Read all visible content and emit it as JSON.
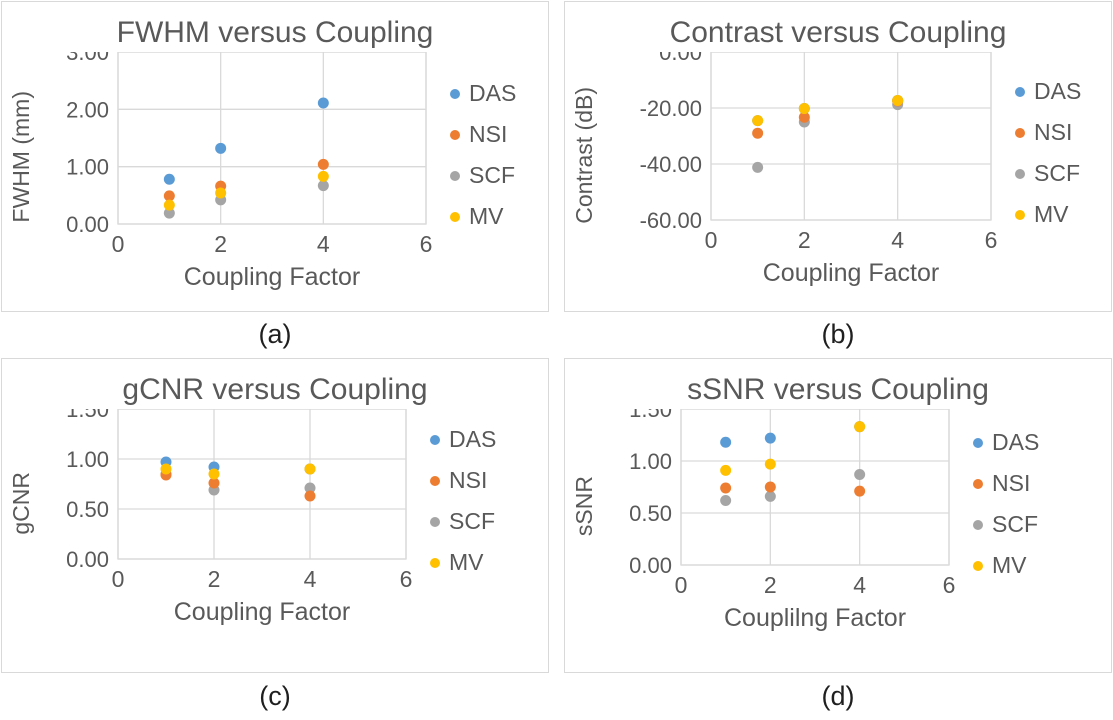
{
  "page": {
    "background": "#ffffff",
    "text_color": "#595959"
  },
  "palette": {
    "DAS": "#5B9BD5",
    "NSI": "#ED7D31",
    "SCF": "#A5A5A5",
    "MV": "#FFC000",
    "gridline": "#D9D9D9"
  },
  "chart_data": [
    {
      "id": "a",
      "type": "scatter",
      "title": "FWHM versus Coupling",
      "xlabel": "Coupling Factor",
      "ylabel": "FWHM (mm)",
      "caption": "(a)",
      "xlim": [
        0,
        6
      ],
      "ylim": [
        0,
        3
      ],
      "xticks": [
        {
          "v": 0,
          "label": "0"
        },
        {
          "v": 2,
          "label": "2"
        },
        {
          "v": 4,
          "label": "4"
        },
        {
          "v": 6,
          "label": "6"
        }
      ],
      "yticks": [
        {
          "v": 0,
          "label": "0.00"
        },
        {
          "v": 1,
          "label": "1.00"
        },
        {
          "v": 2,
          "label": "2.00"
        },
        {
          "v": 3,
          "label": "3.00"
        }
      ],
      "grid": true,
      "legend_position": "right",
      "x": [
        1,
        2,
        4
      ],
      "series": [
        {
          "name": "DAS",
          "color": "#5B9BD5",
          "values": [
            0.78,
            1.32,
            2.11
          ]
        },
        {
          "name": "NSI",
          "color": "#ED7D31",
          "values": [
            0.49,
            0.66,
            1.04
          ]
        },
        {
          "name": "SCF",
          "color": "#A5A5A5",
          "values": [
            0.19,
            0.42,
            0.67
          ]
        },
        {
          "name": "MV",
          "color": "#FFC000",
          "values": [
            0.33,
            0.54,
            0.83
          ]
        }
      ],
      "draw_order": [
        0,
        2,
        1,
        3
      ]
    },
    {
      "id": "b",
      "type": "scatter",
      "title": "Contrast versus Coupling",
      "xlabel": "Coupling Factor",
      "ylabel": "Contrast (dB)",
      "caption": "(b)",
      "xlim": [
        0,
        6
      ],
      "ylim": [
        -60,
        0
      ],
      "xticks": [
        {
          "v": 0,
          "label": "0"
        },
        {
          "v": 2,
          "label": "2"
        },
        {
          "v": 4,
          "label": "4"
        },
        {
          "v": 6,
          "label": "6"
        }
      ],
      "yticks": [
        {
          "v": -60,
          "label": "-60.00"
        },
        {
          "v": -40,
          "label": "-40.00"
        },
        {
          "v": -20,
          "label": "-20.00"
        },
        {
          "v": 0,
          "label": "0.00"
        }
      ],
      "grid": true,
      "legend_position": "right",
      "x": [
        1,
        2,
        4
      ],
      "series": [
        {
          "name": "DAS",
          "color": "#5B9BD5",
          "values": [
            -24.5,
            -20.2,
            -17.3
          ]
        },
        {
          "name": "NSI",
          "color": "#ED7D31",
          "values": [
            -29.0,
            -23.3,
            -17.5
          ]
        },
        {
          "name": "SCF",
          "color": "#A5A5A5",
          "values": [
            -41.2,
            -25.0,
            -18.8
          ]
        },
        {
          "name": "MV",
          "color": "#FFC000",
          "values": [
            -24.5,
            -20.2,
            -17.3
          ]
        }
      ],
      "draw_order": [
        0,
        2,
        1,
        3
      ]
    },
    {
      "id": "c",
      "type": "scatter",
      "title": "gCNR versus Coupling",
      "xlabel": "Coupling Factor",
      "ylabel": "gCNR",
      "caption": "(c)",
      "xlim": [
        0,
        6
      ],
      "ylim": [
        0,
        1.5
      ],
      "xticks": [
        {
          "v": 0,
          "label": "0"
        },
        {
          "v": 2,
          "label": "2"
        },
        {
          "v": 4,
          "label": "4"
        },
        {
          "v": 6,
          "label": "6"
        }
      ],
      "yticks": [
        {
          "v": 0,
          "label": "0.00"
        },
        {
          "v": 0.5,
          "label": "0.50"
        },
        {
          "v": 1,
          "label": "1.00"
        },
        {
          "v": 1.5,
          "label": "1.50"
        }
      ],
      "grid": true,
      "legend_position": "right",
      "x": [
        1,
        2,
        4
      ],
      "series": [
        {
          "name": "DAS",
          "color": "#5B9BD5",
          "values": [
            0.97,
            0.92,
            0.9
          ]
        },
        {
          "name": "NSI",
          "color": "#ED7D31",
          "values": [
            0.84,
            0.76,
            0.63
          ]
        },
        {
          "name": "SCF",
          "color": "#A5A5A5",
          "values": [
            0.85,
            0.69,
            0.71
          ]
        },
        {
          "name": "MV",
          "color": "#FFC000",
          "values": [
            0.9,
            0.85,
            0.9
          ]
        }
      ],
      "draw_order": [
        0,
        2,
        1,
        3
      ]
    },
    {
      "id": "d",
      "type": "scatter",
      "title": "sSNR versus Coupling",
      "xlabel": "Couplilng Factor",
      "ylabel": "sSNR",
      "caption": "(d)",
      "xlim": [
        0,
        6
      ],
      "ylim": [
        0,
        1.5
      ],
      "xticks": [
        {
          "v": 0,
          "label": "0"
        },
        {
          "v": 2,
          "label": "2"
        },
        {
          "v": 4,
          "label": "4"
        },
        {
          "v": 6,
          "label": "6"
        }
      ],
      "yticks": [
        {
          "v": 0,
          "label": "0.00"
        },
        {
          "v": 0.5,
          "label": "0.50"
        },
        {
          "v": 1,
          "label": "1.00"
        },
        {
          "v": 1.5,
          "label": "1.50"
        }
      ],
      "grid": true,
      "legend_position": "right",
      "x": [
        1,
        2,
        4
      ],
      "series": [
        {
          "name": "DAS",
          "color": "#5B9BD5",
          "values": [
            1.18,
            1.22,
            1.33
          ]
        },
        {
          "name": "NSI",
          "color": "#ED7D31",
          "values": [
            0.74,
            0.75,
            0.71
          ]
        },
        {
          "name": "SCF",
          "color": "#A5A5A5",
          "values": [
            0.62,
            0.66,
            0.87
          ]
        },
        {
          "name": "MV",
          "color": "#FFC000",
          "values": [
            0.91,
            0.97,
            1.33
          ]
        }
      ],
      "draw_order": [
        0,
        2,
        1,
        3
      ]
    }
  ]
}
